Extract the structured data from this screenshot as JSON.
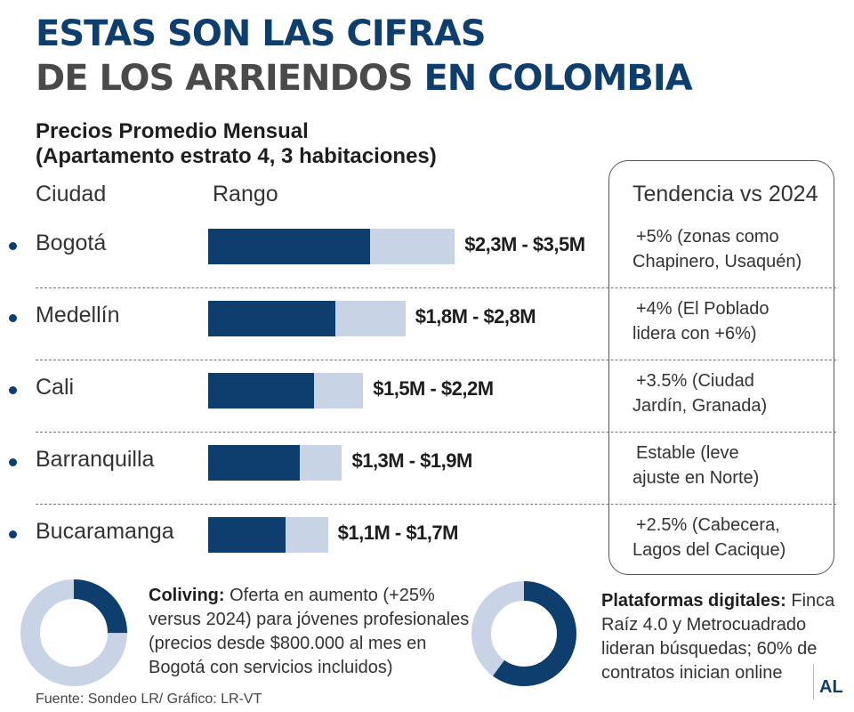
{
  "header": {
    "title_line1": "ESTAS SON LAS CIFRAS",
    "title_line2_part1": "DE LOS ARRIENDOS ",
    "title_line2_part2": "EN COLOMBIA",
    "subtitle_line1": "Precios Promedio Mensual",
    "subtitle_line2": "(Apartamento estrato 4, 3 habitaciones)"
  },
  "columns": {
    "city": "Ciudad",
    "range": "Rango",
    "trend": "Tendencia vs 2024"
  },
  "colors": {
    "primary": "#0e3e6d",
    "light": "#c9d3e6",
    "gray": "#4a4a4a"
  },
  "chart_data": {
    "type": "bar",
    "categories": [
      "Bogotá",
      "Medellín",
      "Cali",
      "Barranquilla",
      "Bucaramanga"
    ],
    "range_min": [
      2.3,
      1.8,
      1.5,
      1.3,
      1.1
    ],
    "range_max": [
      3.5,
      2.8,
      2.2,
      1.9,
      1.7
    ],
    "range_labels": [
      "$2,3M - $3,5M",
      "$1,8M - $2,8M",
      "$1,5M - $2,2M",
      "$1,3M - $1,9M",
      "$1,1M - $1,7M"
    ],
    "trends": [
      [
        "+5% (zonas como",
        "Chapinero, Usaquén)"
      ],
      [
        "+4% (El Poblado",
        "lidera con +6%)"
      ],
      [
        "+3.5% (Ciudad",
        "Jardín, Granada)"
      ],
      [
        "Estable (leve",
        "ajuste en Norte)"
      ],
      [
        "+2.5% (Cabecera,",
        "Lagos del Cacique)"
      ]
    ]
  },
  "notes": {
    "coliving": {
      "label": "Coliving:",
      "line1": " Oferta en aumento (+25%",
      "line2": "versus 2024) para jóvenes profesionales",
      "line3": "(precios desde $800.000 al mes en",
      "line4": "Bogotá con servicios incluidos)",
      "donut_fraction": 0.25
    },
    "plataformas": {
      "label": "Plataformas digitales:",
      "line1": " Finca",
      "line2": "Raíz 4.0 y Metrocuadrado",
      "line3": "lideran búsquedas; 60% de",
      "line4": "contratos inician online",
      "donut_fraction": 0.6
    }
  },
  "footer": {
    "source": "Fuente: Sondeo LR/ Gráfico: LR-VT",
    "logo": "AL"
  }
}
